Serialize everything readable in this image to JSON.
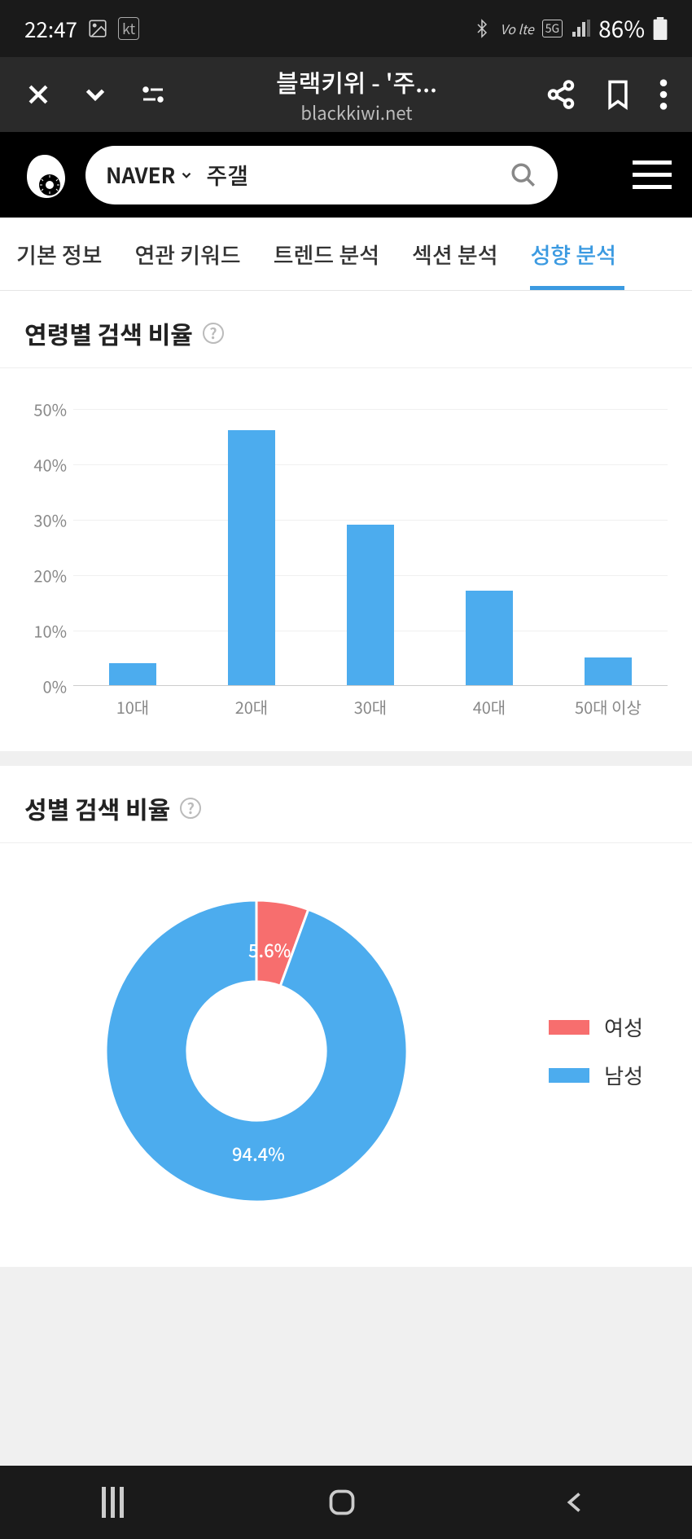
{
  "status": {
    "time": "22:47",
    "battery": "86%",
    "kt": "kt"
  },
  "browser": {
    "title": "블랙키위 - '주...",
    "url": "blackkiwi.net"
  },
  "header": {
    "provider": "NAVER",
    "query": "주갤"
  },
  "tabs": {
    "items": [
      "기본 정보",
      "연관 키워드",
      "트렌드 분석",
      "섹션 분석",
      "성향 분석"
    ],
    "active_index": 4,
    "active_color": "#3b9ae1"
  },
  "age_chart": {
    "title": "연령별 검색 비율",
    "type": "bar",
    "categories": [
      "10대",
      "20대",
      "30대",
      "40대",
      "50대 이상"
    ],
    "values": [
      4,
      46,
      29,
      17,
      5
    ],
    "ylim": [
      0,
      50
    ],
    "ytick_step": 10,
    "yticks": [
      "0%",
      "10%",
      "20%",
      "30%",
      "40%",
      "50%"
    ],
    "bar_color": "#4cacee",
    "grid_color": "#f0f0f0",
    "axis_label_color": "#888888"
  },
  "gender_chart": {
    "title": "성별 검색 비율",
    "type": "donut",
    "series": [
      {
        "label": "여성",
        "value": 5.6,
        "value_label": "5.6%",
        "color": "#f76e6e"
      },
      {
        "label": "남성",
        "value": 94.4,
        "value_label": "94.4%",
        "color": "#4cacee"
      }
    ],
    "inner_radius_ratio": 0.46,
    "background_color": "#ffffff"
  }
}
